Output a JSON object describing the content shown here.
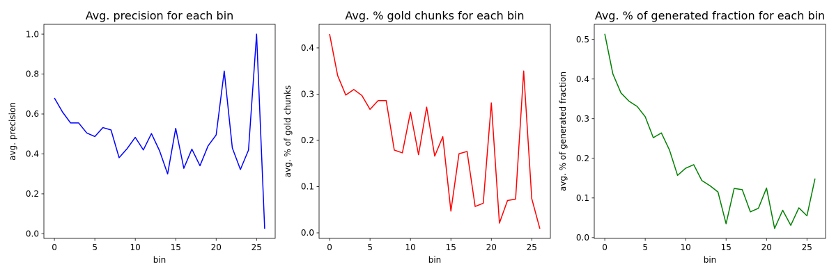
{
  "chart_data": [
    {
      "type": "line",
      "title": "Avg. precision for each bin",
      "xlabel": "bin",
      "ylabel": "avg. precision",
      "color": "#0000ff",
      "xlim": [
        -1.3,
        27.3
      ],
      "ylim": [
        -0.023,
        1.049
      ],
      "xticks": [
        0,
        5,
        10,
        15,
        20,
        25
      ],
      "yticks": [
        0.0,
        0.2,
        0.4,
        0.6,
        0.8,
        1.0
      ],
      "ytick_labels": [
        "0.0",
        "0.2",
        "0.4",
        "0.6",
        "0.8",
        "1.0"
      ],
      "x": [
        0,
        1,
        2,
        3,
        4,
        5,
        6,
        7,
        8,
        9,
        10,
        11,
        12,
        13,
        14,
        15,
        16,
        17,
        18,
        19,
        20,
        21,
        22,
        23,
        24,
        25,
        26
      ],
      "values": [
        0.68,
        0.61,
        0.555,
        0.555,
        0.505,
        0.487,
        0.532,
        0.52,
        0.381,
        0.427,
        0.483,
        0.42,
        0.502,
        0.416,
        0.3,
        0.528,
        0.328,
        0.424,
        0.341,
        0.44,
        0.495,
        0.815,
        0.43,
        0.322,
        0.419,
        1.0,
        0.025
      ]
    },
    {
      "type": "line",
      "title": "Avg. % gold chunks for each bin",
      "xlabel": "bin",
      "ylabel": "avg. % of gold chunks",
      "color": "#ff0000",
      "xlim": [
        -1.3,
        27.3
      ],
      "ylim": [
        -0.012,
        0.451
      ],
      "xticks": [
        0,
        5,
        10,
        15,
        20,
        25
      ],
      "yticks": [
        0.0,
        0.1,
        0.2,
        0.3,
        0.4
      ],
      "ytick_labels": [
        "0.0",
        "0.1",
        "0.2",
        "0.3",
        "0.4"
      ],
      "x": [
        0,
        1,
        2,
        3,
        4,
        5,
        6,
        7,
        8,
        9,
        10,
        11,
        12,
        13,
        14,
        15,
        16,
        17,
        18,
        19,
        20,
        21,
        22,
        23,
        24,
        25,
        26
      ],
      "values": [
        0.43,
        0.34,
        0.298,
        0.31,
        0.297,
        0.267,
        0.286,
        0.286,
        0.179,
        0.173,
        0.261,
        0.169,
        0.272,
        0.166,
        0.208,
        0.047,
        0.171,
        0.176,
        0.057,
        0.064,
        0.281,
        0.021,
        0.07,
        0.073,
        0.35,
        0.074,
        0.009
      ]
    },
    {
      "type": "line",
      "title": "Avg. % of generated fraction for each bin",
      "xlabel": "bin",
      "ylabel": "avg. % of generated fraction",
      "color": "#008000",
      "xlim": [
        -1.3,
        27.3
      ],
      "ylim": [
        -0.002,
        0.538
      ],
      "xticks": [
        0,
        5,
        10,
        15,
        20,
        25
      ],
      "yticks": [
        0.0,
        0.1,
        0.2,
        0.3,
        0.4,
        0.5
      ],
      "ytick_labels": [
        "0.0",
        "0.1",
        "0.2",
        "0.3",
        "0.4",
        "0.5"
      ],
      "x": [
        0,
        1,
        2,
        3,
        4,
        5,
        6,
        7,
        8,
        9,
        10,
        11,
        12,
        13,
        14,
        15,
        16,
        17,
        18,
        19,
        20,
        21,
        22,
        23,
        24,
        25,
        26
      ],
      "values": [
        0.514,
        0.413,
        0.365,
        0.344,
        0.331,
        0.305,
        0.252,
        0.264,
        0.221,
        0.157,
        0.175,
        0.184,
        0.144,
        0.131,
        0.115,
        0.035,
        0.124,
        0.121,
        0.065,
        0.074,
        0.125,
        0.023,
        0.069,
        0.031,
        0.075,
        0.055,
        0.149
      ]
    }
  ]
}
